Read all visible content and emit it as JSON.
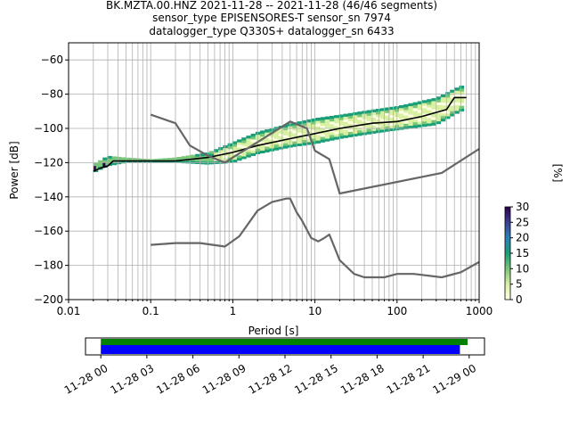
{
  "title_lines": [
    "BK.MZTA.00.HNZ   2021-11-28 -- 2021-11-28  (46/46 segments)",
    "sensor_type EPISENSORES-T sensor_sn 7974",
    "datalogger_type Q330S+ datalogger_sn 6433"
  ],
  "chart_data": [
    {
      "type": "heatmap",
      "xlabel": "Period [s]",
      "ylabel": "Power [dB]",
      "x_scale": "log",
      "xlim": [
        0.01,
        1000
      ],
      "ylim": [
        -200,
        -50
      ],
      "x_ticks": [
        0.01,
        0.1,
        1,
        10,
        100,
        1000
      ],
      "x_tick_labels": [
        "0.01",
        "0.1",
        "1",
        "10",
        "100",
        "1000"
      ],
      "y_ticks": [
        -200,
        -180,
        -160,
        -140,
        -120,
        -100,
        -80,
        -60
      ],
      "y_tick_labels": [
        "−200",
        "−180",
        "−160",
        "−140",
        "−120",
        "−100",
        "−80",
        "−60"
      ],
      "grid": true,
      "colorbar": {
        "label": "[%]",
        "min": 0,
        "max": 30,
        "ticks": [
          0,
          5,
          10,
          15,
          20,
          25,
          30
        ],
        "tick_labels": [
          "0",
          "5",
          "10",
          "15",
          "20",
          "25",
          "30"
        ],
        "colors": [
          "#ffffe5",
          "#d9f0a3",
          "#78c679",
          "#1a9e77",
          "#2c7fb8",
          "#3f3f8f",
          "#2d004b"
        ]
      },
      "ppsd_bands": [
        {
          "period": [
            0.02,
            0.03,
            0.05,
            0.1,
            0.2,
            0.5,
            1,
            2,
            5,
            10,
            20,
            50,
            100,
            300,
            600
          ],
          "low": [
            -126,
            -122,
            -120,
            -120,
            -120,
            -121,
            -120,
            -115,
            -111,
            -109,
            -106,
            -103,
            -101,
            -98,
            -90
          ]
        },
        {
          "period": [
            0.02,
            0.03,
            0.05,
            0.1,
            0.2,
            0.5,
            1,
            2,
            5,
            10,
            20,
            50,
            100,
            300,
            600
          ],
          "high": [
            -121,
            -116,
            -117,
            -118,
            -117,
            -114,
            -108,
            -102,
            -97,
            -94,
            -92,
            -89,
            -87,
            -82,
            -75
          ]
        }
      ],
      "series": [
        {
          "name": "",
          "color": "#000000",
          "x": [
            0.02,
            0.025,
            0.03,
            0.035,
            0.05,
            0.1,
            0.2,
            0.5,
            1,
            2,
            5,
            10,
            20,
            50,
            100,
            200,
            400,
            500,
            700
          ],
          "y": [
            -125,
            -123,
            -122,
            -119,
            -119,
            -119,
            -119,
            -117,
            -114,
            -110,
            -106,
            -103,
            -100,
            -97,
            -96,
            -93,
            -89,
            -82,
            -82
          ]
        },
        {
          "name": "",
          "color": "#666666",
          "x": [
            0.1,
            0.2,
            0.3,
            0.5,
            0.8,
            1,
            2,
            5,
            8,
            10,
            15,
            20,
            350,
            1000
          ],
          "y": [
            -92,
            -97,
            -110,
            -116,
            -120,
            -117,
            -108,
            -96,
            -100,
            -113,
            -118,
            -138,
            -126,
            -112
          ]
        },
        {
          "name": "",
          "color": "#666666",
          "x": [
            0.1,
            0.2,
            0.4,
            0.8,
            1.2,
            2,
            3,
            4.5,
            5,
            6,
            7,
            9,
            11,
            13,
            15,
            20,
            30,
            40,
            70,
            100,
            160,
            350,
            600,
            1000
          ],
          "y": [
            -168,
            -167,
            -167,
            -169,
            -163,
            -148,
            -143,
            -141,
            -141,
            -149,
            -154,
            -164,
            -166,
            -164,
            -162,
            -177,
            -185,
            -187,
            -187,
            -185,
            -185,
            -187,
            -184,
            -178
          ]
        }
      ]
    },
    {
      "type": "bar",
      "x_tick_labels": [
        "11-28 00",
        "11-28 03",
        "11-28 06",
        "11-28 09",
        "11-28 12",
        "11-28 15",
        "11-28 18",
        "11-28 21",
        "11-29 00"
      ],
      "x_range_hours": [
        -1,
        25
      ],
      "series": [
        {
          "name": "",
          "color": "#008000",
          "start_hours": 0,
          "end_hours": 23.9
        },
        {
          "name": "",
          "color": "#0000ff",
          "start_hours": 0,
          "end_hours": 23.4
        }
      ]
    }
  ]
}
